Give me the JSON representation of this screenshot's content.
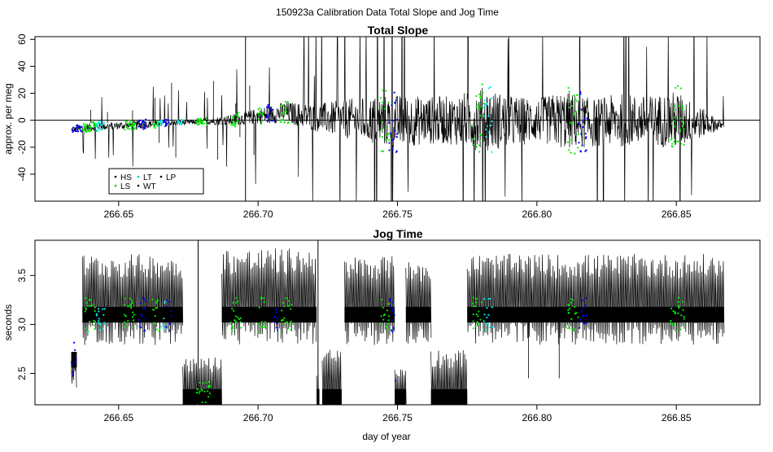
{
  "figure_title": "150923a   Calibration Data Total Slope and Jog Time",
  "xlabel": "day of year",
  "chart_data": [
    {
      "type": "line",
      "title": "Total Slope",
      "xlabel": "",
      "ylabel": "approx. per meg",
      "xlim": [
        266.62,
        266.88
      ],
      "ylim": [
        -60,
        62
      ],
      "xticks": [
        266.65,
        266.7,
        266.75,
        266.8,
        266.85
      ],
      "xtick_labels": [
        "266.65",
        "266.70",
        "266.75",
        "266.80",
        "266.85"
      ],
      "yticks": [
        -40,
        -20,
        0,
        20,
        40,
        60
      ],
      "ytick_labels": [
        "-40",
        "-20",
        "0",
        "20",
        "40",
        "60"
      ],
      "hline": 0,
      "grid": false,
      "legend": {
        "placement": "bottom-left",
        "entries": [
          {
            "label": "HS",
            "color": "#000000"
          },
          {
            "label": "LS",
            "color": "#00cc00"
          },
          {
            "label": "LT",
            "color": "#00cccc"
          },
          {
            "label": "WT",
            "color": "#000000"
          },
          {
            "label": "LP",
            "color": "#000000"
          }
        ]
      },
      "series": [
        {
          "color": "#000000",
          "x": [
            266.633,
            266.64,
            266.65,
            266.66,
            266.67,
            266.68,
            266.69,
            266.7,
            266.71,
            266.72,
            266.73,
            266.74,
            266.75,
            266.76,
            266.77,
            266.78,
            266.79,
            266.8,
            266.81,
            266.82,
            266.83,
            266.84,
            266.85,
            266.86,
            266.867
          ],
          "y": [
            -7,
            -5,
            -4,
            -3,
            -2,
            -1,
            0,
            3,
            6,
            2,
            1,
            0,
            -1,
            0,
            0,
            1,
            -1,
            0,
            0,
            -2,
            0,
            0,
            0,
            -2,
            -4
          ],
          "amplitude": [
            2,
            3,
            3,
            3,
            2,
            2,
            4,
            6,
            8,
            10,
            14,
            18,
            20,
            18,
            18,
            24,
            20,
            16,
            22,
            18,
            20,
            18,
            22,
            10,
            2
          ]
        }
      ],
      "colored_point_segments": [
        {
          "color": "#0000ee",
          "x": [
            266.633,
            266.637
          ]
        },
        {
          "color": "#00ee00",
          "x": [
            266.637,
            266.642
          ]
        },
        {
          "color": "#00eeee",
          "x": [
            266.642,
            266.645
          ]
        },
        {
          "color": "#00ee00",
          "x": [
            266.652,
            266.656
          ]
        },
        {
          "color": "#0000ee",
          "x": [
            266.657,
            266.66
          ]
        },
        {
          "color": "#00ee00",
          "x": [
            266.662,
            266.664
          ]
        },
        {
          "color": "#00eeee",
          "x": [
            266.664,
            266.666
          ]
        },
        {
          "color": "#0000ee",
          "x": [
            266.666,
            266.668
          ]
        },
        {
          "color": "#00eeee",
          "x": [
            266.671,
            266.673
          ]
        },
        {
          "color": "#00ee00",
          "x": [
            266.678,
            266.682
          ]
        },
        {
          "color": "#00ee00",
          "x": [
            266.69,
            266.693
          ]
        },
        {
          "color": "#00ee00",
          "x": [
            266.7,
            266.702
          ]
        },
        {
          "color": "#0000ee",
          "x": [
            266.703,
            266.706
          ]
        },
        {
          "color": "#00ee00",
          "x": [
            266.708,
            266.711
          ]
        },
        {
          "color": "#00ee00",
          "x": [
            266.744,
            266.747
          ]
        },
        {
          "color": "#0000ee",
          "x": [
            266.747,
            266.75
          ]
        },
        {
          "color": "#00ee00",
          "x": [
            266.777,
            266.781
          ]
        },
        {
          "color": "#00eeee",
          "x": [
            266.781,
            266.784
          ]
        },
        {
          "color": "#00ee00",
          "x": [
            266.811,
            266.815
          ]
        },
        {
          "color": "#0000ee",
          "x": [
            266.815,
            266.818
          ]
        },
        {
          "color": "#00ee00",
          "x": [
            266.848,
            266.853
          ]
        }
      ]
    },
    {
      "type": "line",
      "title": "Jog Time",
      "xlabel": "day of year",
      "ylabel": "seconds",
      "xlim": [
        266.62,
        266.88
      ],
      "ylim": [
        2.18,
        3.86
      ],
      "xticks": [
        266.65,
        266.7,
        266.75,
        266.8,
        266.85
      ],
      "xtick_labels": [
        "266.65",
        "266.70",
        "266.75",
        "266.80",
        "266.85"
      ],
      "yticks": [
        2.5,
        3.0,
        3.5
      ],
      "ytick_labels": [
        "2.5",
        "3.0",
        "3.5"
      ],
      "grid": false,
      "series": [
        {
          "color": "#000000",
          "segments": [
            {
              "x": [
                266.633,
                266.635
              ],
              "level": 2.64,
              "spike": 2.62
            },
            {
              "x": [
                266.637,
                266.673
              ],
              "level": 3.1,
              "spike": 3.72
            },
            {
              "x": [
                266.673,
                266.687
              ],
              "level": 2.26,
              "spike": 2.68
            },
            {
              "x": [
                266.687,
                266.721
              ],
              "level": 3.1,
              "spike": 3.78
            },
            {
              "x": [
                266.721,
                266.722
              ],
              "level": 2.26,
              "spike": 2.6
            },
            {
              "x": [
                266.723,
                266.73
              ],
              "level": 2.26,
              "spike": 2.75
            },
            {
              "x": [
                266.731,
                266.749
              ],
              "level": 3.1,
              "spike": 3.7
            },
            {
              "x": [
                266.749,
                266.753
              ],
              "level": 2.26,
              "spike": 2.6
            },
            {
              "x": [
                266.753,
                266.762
              ],
              "level": 3.1,
              "spike": 3.65
            },
            {
              "x": [
                266.762,
                266.775
              ],
              "level": 2.26,
              "spike": 2.75
            },
            {
              "x": [
                266.775,
                266.867
              ],
              "level": 3.1,
              "spike": 3.72
            }
          ]
        }
      ],
      "colored_point_segments": [
        {
          "color": "#0000ee",
          "x": [
            266.633,
            266.635
          ]
        },
        {
          "color": "#00ee00",
          "x": [
            266.638,
            266.642
          ]
        },
        {
          "color": "#00eeee",
          "x": [
            266.642,
            266.645
          ]
        },
        {
          "color": "#00ee00",
          "x": [
            266.652,
            266.656
          ]
        },
        {
          "color": "#0000ee",
          "x": [
            266.657,
            266.66
          ]
        },
        {
          "color": "#00ee00",
          "x": [
            266.662,
            266.665
          ]
        },
        {
          "color": "#00eeee",
          "x": [
            266.665,
            266.667
          ]
        },
        {
          "color": "#0000ee",
          "x": [
            266.667,
            266.669
          ]
        },
        {
          "color": "#00ee00",
          "x": [
            266.678,
            266.683
          ]
        },
        {
          "color": "#00ee00",
          "x": [
            266.69,
            266.694
          ]
        },
        {
          "color": "#00ee00",
          "x": [
            266.7,
            266.703
          ]
        },
        {
          "color": "#0000ee",
          "x": [
            266.705,
            266.707
          ]
        },
        {
          "color": "#00ee00",
          "x": [
            266.708,
            266.712
          ]
        },
        {
          "color": "#00ee00",
          "x": [
            266.744,
            266.747
          ]
        },
        {
          "color": "#0000ee",
          "x": [
            266.747,
            266.75
          ]
        },
        {
          "color": "#00ee00",
          "x": [
            266.777,
            266.781
          ]
        },
        {
          "color": "#00eeee",
          "x": [
            266.781,
            266.784
          ]
        },
        {
          "color": "#00ee00",
          "x": [
            266.811,
            266.815
          ]
        },
        {
          "color": "#0000ee",
          "x": [
            266.815,
            266.818
          ]
        },
        {
          "color": "#00ee00",
          "x": [
            266.848,
            266.853
          ]
        }
      ]
    }
  ]
}
